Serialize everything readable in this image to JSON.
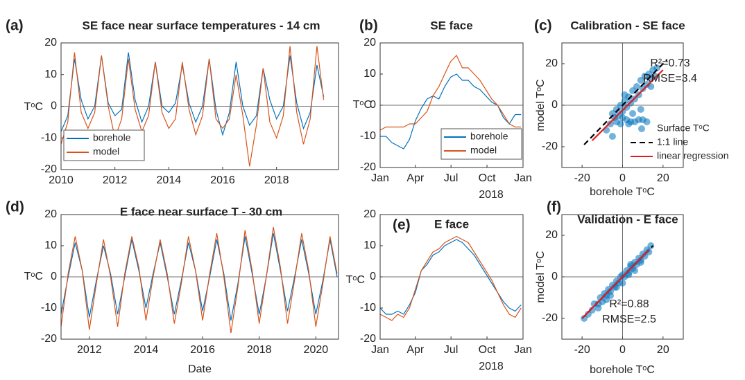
{
  "chart_data": [
    {
      "type": "line",
      "panel_label": "(a)",
      "title": "SE face near surface temperatures - 14 cm",
      "ylabel": "TᵒC",
      "x": [
        2010,
        2010.25,
        2010.5,
        2010.75,
        2011,
        2011.25,
        2011.5,
        2011.75,
        2012,
        2012.25,
        2012.5,
        2012.75,
        2013,
        2013.25,
        2013.5,
        2013.75,
        2014,
        2014.25,
        2014.5,
        2014.75,
        2015,
        2015.25,
        2015.5,
        2015.75,
        2016,
        2016.25,
        2016.5,
        2016.75,
        2017,
        2017.25,
        2017.5,
        2017.75,
        2018,
        2018.25,
        2018.5,
        2018.75,
        2019,
        2019.25,
        2019.5,
        2019.75
      ],
      "series": [
        {
          "name": "borehole",
          "color": "#0072bd",
          "values": [
            -8,
            -3,
            15,
            2,
            -4,
            0,
            16,
            1,
            -3,
            -1,
            17,
            2,
            -5,
            0,
            14,
            0,
            -2,
            1,
            13,
            1,
            -5,
            0,
            15,
            -1,
            -9,
            -2,
            14,
            0,
            -6,
            -3,
            12,
            2,
            -4,
            0,
            16,
            1,
            -7,
            -2,
            13,
            3
          ]
        },
        {
          "name": "model",
          "color": "#d95319",
          "values": [
            -12,
            -5,
            17,
            -2,
            -7,
            -2,
            16,
            0,
            -10,
            -4,
            15,
            -1,
            -8,
            -3,
            14,
            -2,
            -7,
            -4,
            14,
            -1,
            -9,
            -3,
            15,
            -4,
            -7,
            -4,
            10,
            -3,
            -19,
            -6,
            12,
            -5,
            -10,
            -3,
            19,
            -2,
            -12,
            -4,
            19,
            2
          ]
        }
      ],
      "xlim": [
        2010,
        2020.3
      ],
      "xticks": [
        2010,
        2012,
        2014,
        2016,
        2018
      ],
      "ylim": [
        -20,
        20
      ],
      "yticks": [
        -20,
        -10,
        0,
        10,
        20
      ],
      "legend": "lower left",
      "zeroline": true
    },
    {
      "type": "line",
      "panel_label": "(b)",
      "title": "SE face",
      "ylabel": "TᵒC",
      "xsublabel": "2018",
      "x": [
        0,
        15,
        30,
        45,
        60,
        75,
        90,
        105,
        120,
        135,
        150,
        165,
        180,
        195,
        210,
        225,
        240,
        255,
        270,
        285,
        300,
        315,
        330,
        345,
        360
      ],
      "series": [
        {
          "name": "borehole",
          "color": "#0072bd",
          "values": [
            -10,
            -10,
            -12,
            -13,
            -14,
            -11,
            -5,
            -1,
            2,
            3,
            2,
            6,
            9,
            10,
            8,
            8,
            6,
            5,
            3,
            1,
            0,
            -4,
            -6,
            -3,
            -3
          ]
        },
        {
          "name": "model",
          "color": "#d95319",
          "values": [
            -8,
            -7,
            -7,
            -7,
            -7,
            -6,
            -6,
            -4,
            -2,
            3,
            6,
            10,
            14,
            16,
            12,
            12,
            10,
            8,
            5,
            2,
            0,
            -3,
            -6,
            -7,
            -7
          ]
        }
      ],
      "xlim": [
        0,
        365
      ],
      "xticks": [
        {
          "value": 0,
          "label": "Jan"
        },
        {
          "value": 90,
          "label": "Apr"
        },
        {
          "value": 181,
          "label": "Jul"
        },
        {
          "value": 273,
          "label": "Oct"
        },
        {
          "value": 365,
          "label": "Jan"
        }
      ],
      "ylim": [
        -20,
        20
      ],
      "yticks": [
        -20,
        -10,
        0,
        10,
        20
      ],
      "legend": "lower right",
      "zeroline": true
    },
    {
      "type": "scatter",
      "panel_label": "(c)",
      "title": "Calibration - SE face",
      "xlabel": "borehole TᵒC",
      "ylabel": "model TᵒC",
      "annotations": [
        "R²=0.73",
        "RMSE=3.4"
      ],
      "series": [
        {
          "name": "Surface TᵒC",
          "color": "#0072bd",
          "style": "dots",
          "x": [
            -8,
            -6,
            -5,
            -4,
            -3,
            -2,
            -1,
            0,
            1,
            2,
            3,
            4,
            5,
            6,
            7,
            8,
            9,
            10,
            11,
            12,
            13,
            14,
            15,
            16,
            17,
            -3,
            0,
            2,
            4,
            6,
            8,
            10,
            12,
            -5,
            -1,
            3,
            5,
            9,
            14,
            1
          ],
          "values": [
            -12,
            -9,
            -4,
            -6,
            -2,
            -5,
            0,
            -3,
            2,
            -1,
            4,
            1,
            7,
            3,
            9,
            5,
            12,
            8,
            14,
            10,
            15,
            13,
            17,
            14,
            18,
            -8,
            -6,
            -7,
            -8,
            -8,
            -7,
            -7,
            -8,
            -15,
            -9,
            -9,
            -4,
            -2,
            9,
            5
          ]
        },
        {
          "name": "1:1 line",
          "color": "#000000",
          "style": "dashed",
          "x": [
            -19,
            22
          ],
          "values": [
            -19,
            22
          ]
        },
        {
          "name": "linear regression",
          "color": "#e41a1c",
          "style": "solid",
          "x": [
            -15,
            20
          ],
          "values": [
            -17,
            17
          ]
        }
      ],
      "xlim": [
        -30,
        30
      ],
      "xticks": [
        -20,
        0,
        20
      ],
      "ylim": [
        -30,
        30
      ],
      "yticks": [
        -20,
        0,
        20
      ],
      "legend": "lower right",
      "zeroline": true
    },
    {
      "type": "line",
      "panel_label": "(d)",
      "title": "E face near surface T - 30 cm",
      "xlabel": "Date",
      "ylabel": "TᵒC",
      "x": [
        2011,
        2011.25,
        2011.5,
        2011.75,
        2012,
        2012.25,
        2012.5,
        2012.75,
        2013,
        2013.25,
        2013.5,
        2013.75,
        2014,
        2014.25,
        2014.5,
        2014.75,
        2015,
        2015.25,
        2015.5,
        2015.75,
        2016,
        2016.25,
        2016.5,
        2016.75,
        2017,
        2017.25,
        2017.5,
        2017.75,
        2018,
        2018.25,
        2018.5,
        2018.75,
        2019,
        2019.25,
        2019.5,
        2019.75,
        2020,
        2020.25,
        2020.5,
        2020.75
      ],
      "series": [
        {
          "name": "borehole",
          "color": "#0072bd",
          "values": [
            -12,
            0,
            11,
            2,
            -13,
            -1,
            10,
            1,
            -12,
            0,
            12,
            2,
            -10,
            1,
            11,
            0,
            -12,
            -1,
            11,
            2,
            -11,
            0,
            12,
            1,
            -14,
            -2,
            13,
            1,
            -12,
            0,
            14,
            2,
            -11,
            0,
            12,
            1,
            -12,
            -1,
            12,
            0
          ]
        },
        {
          "name": "model",
          "color": "#d95319",
          "values": [
            -16,
            1,
            13,
            2,
            -17,
            -2,
            12,
            0,
            -16,
            1,
            13,
            3,
            -14,
            0,
            12,
            1,
            -15,
            -2,
            13,
            2,
            -14,
            1,
            14,
            0,
            -18,
            -3,
            15,
            2,
            -15,
            0,
            16,
            3,
            -15,
            -1,
            14,
            2,
            -16,
            -2,
            13,
            1
          ]
        }
      ],
      "xlim": [
        2011,
        2020.8
      ],
      "xticks": [
        2012,
        2014,
        2016,
        2018,
        2020
      ],
      "ylim": [
        -20,
        20
      ],
      "yticks": [
        -20,
        -10,
        0,
        10,
        20
      ],
      "zeroline": true
    },
    {
      "type": "line",
      "panel_label": "(e)",
      "title": "E face",
      "ylabel": "TᵒC",
      "xsublabel": "2018",
      "x": [
        0,
        15,
        30,
        45,
        60,
        75,
        90,
        105,
        120,
        135,
        150,
        165,
        180,
        195,
        210,
        225,
        240,
        255,
        270,
        285,
        300,
        315,
        330,
        345,
        360
      ],
      "series": [
        {
          "name": "borehole",
          "color": "#0072bd",
          "values": [
            -10,
            -12,
            -12,
            -11,
            -12,
            -9,
            -5,
            2,
            4,
            7,
            8,
            10,
            11,
            12,
            11,
            9,
            7,
            4,
            1,
            -2,
            -5,
            -8,
            -10,
            -11,
            -9
          ]
        },
        {
          "name": "model",
          "color": "#d95319",
          "values": [
            -12,
            -13,
            -14,
            -12,
            -13,
            -10,
            -4,
            2,
            5,
            8,
            9,
            11,
            12,
            13,
            12,
            11,
            8,
            5,
            2,
            -1,
            -5,
            -9,
            -12,
            -13,
            -10
          ]
        }
      ],
      "xlim": [
        0,
        365
      ],
      "xticks": [
        {
          "value": 0,
          "label": "Jan"
        },
        {
          "value": 90,
          "label": "Apr"
        },
        {
          "value": 181,
          "label": "Jul"
        },
        {
          "value": 273,
          "label": "Oct"
        },
        {
          "value": 365,
          "label": "Jan"
        }
      ],
      "ylim": [
        -20,
        20
      ],
      "yticks": [
        -20,
        -10,
        0,
        10,
        20
      ],
      "zeroline": true
    },
    {
      "type": "scatter",
      "panel_label": "(f)",
      "title": "Validation - E face",
      "xlabel": "borehole TᵒC",
      "ylabel": "model TᵒC",
      "annotations": [
        "R²=0.88",
        "RMSE=2.5"
      ],
      "series": [
        {
          "name": "Surface TᵒC",
          "color": "#0072bd",
          "style": "dots",
          "x": [
            -19,
            -17,
            -15,
            -14,
            -12,
            -11,
            -10,
            -9,
            -8,
            -7,
            -6,
            -5,
            -4,
            -3,
            -2,
            -1,
            0,
            1,
            2,
            3,
            4,
            5,
            6,
            7,
            8,
            9,
            10,
            11,
            12,
            13,
            14,
            -6,
            -3,
            0,
            3,
            6,
            -12,
            9,
            -8,
            4
          ],
          "values": [
            -20,
            -18,
            -16,
            -13,
            -13,
            -10,
            -12,
            -8,
            -9,
            -6,
            -7,
            -4,
            -5,
            -2,
            -3,
            0,
            1,
            0,
            3,
            2,
            5,
            4,
            7,
            6,
            9,
            8,
            11,
            10,
            13,
            12,
            15,
            -9,
            -5,
            -3,
            1,
            3,
            -15,
            7,
            -11,
            6
          ]
        },
        {
          "name": "1:1 line",
          "color": "#000000",
          "style": "dashed",
          "x": [
            -20,
            15
          ],
          "values": [
            -20,
            15
          ]
        },
        {
          "name": "linear regression",
          "color": "#e41a1c",
          "style": "solid",
          "x": [
            -20,
            13
          ],
          "values": [
            -20,
            13
          ]
        }
      ],
      "xlim": [
        -30,
        30
      ],
      "xticks": [
        -20,
        0,
        20
      ],
      "ylim": [
        -30,
        30
      ],
      "yticks": [
        -20,
        0,
        20
      ],
      "zeroline": true
    }
  ]
}
